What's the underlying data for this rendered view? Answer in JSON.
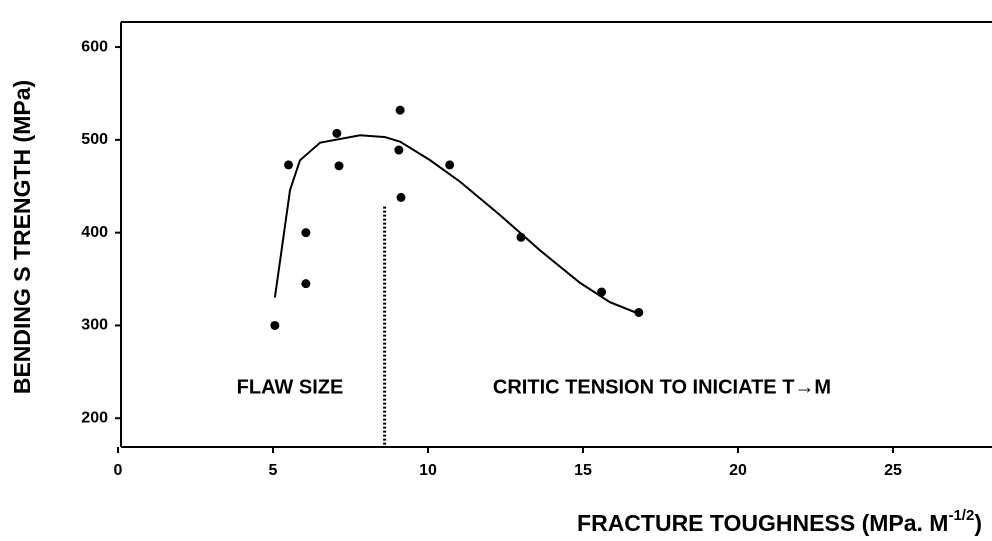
{
  "chart_data": {
    "type": "scatter",
    "x_label": [
      "FRACTURE TOUGHNESS (MPa. M",
      "-1/2",
      ")"
    ],
    "y_label": "BENDING S TRENGTH (MPa)",
    "x": [
      5.06,
      5.5,
      6.06,
      6.06,
      7.06,
      7.13,
      9.1,
      9.06,
      9.13,
      10.7,
      13.0,
      15.6,
      16.8
    ],
    "values": [
      300,
      473,
      400,
      345,
      507,
      472,
      532,
      489,
      438,
      473,
      395,
      336,
      314
    ],
    "color": "#000000",
    "curve": {
      "x": [
        5.06,
        5.23,
        5.55,
        5.87,
        6.52,
        7.81,
        8.61,
        9.1,
        10.07,
        11.03,
        12.32,
        13.61,
        14.9,
        15.87,
        16.77
      ],
      "values": [
        330,
        370,
        446,
        478,
        497,
        505,
        503,
        498,
        478,
        455,
        419,
        381,
        346,
        325,
        313
      ]
    },
    "divider": {
      "x": 8.6,
      "top": 428
    },
    "annotations": [
      "FLAW SIZE",
      "CRITIC TENSION TO INICIATE T→M"
    ],
    "xlim": [
      0,
      28
    ],
    "ylim": [
      169,
      627
    ],
    "xticks": [
      0,
      5,
      10,
      15,
      20,
      25
    ],
    "yticks": [
      200,
      300,
      400,
      500,
      600
    ],
    "grid": false
  }
}
